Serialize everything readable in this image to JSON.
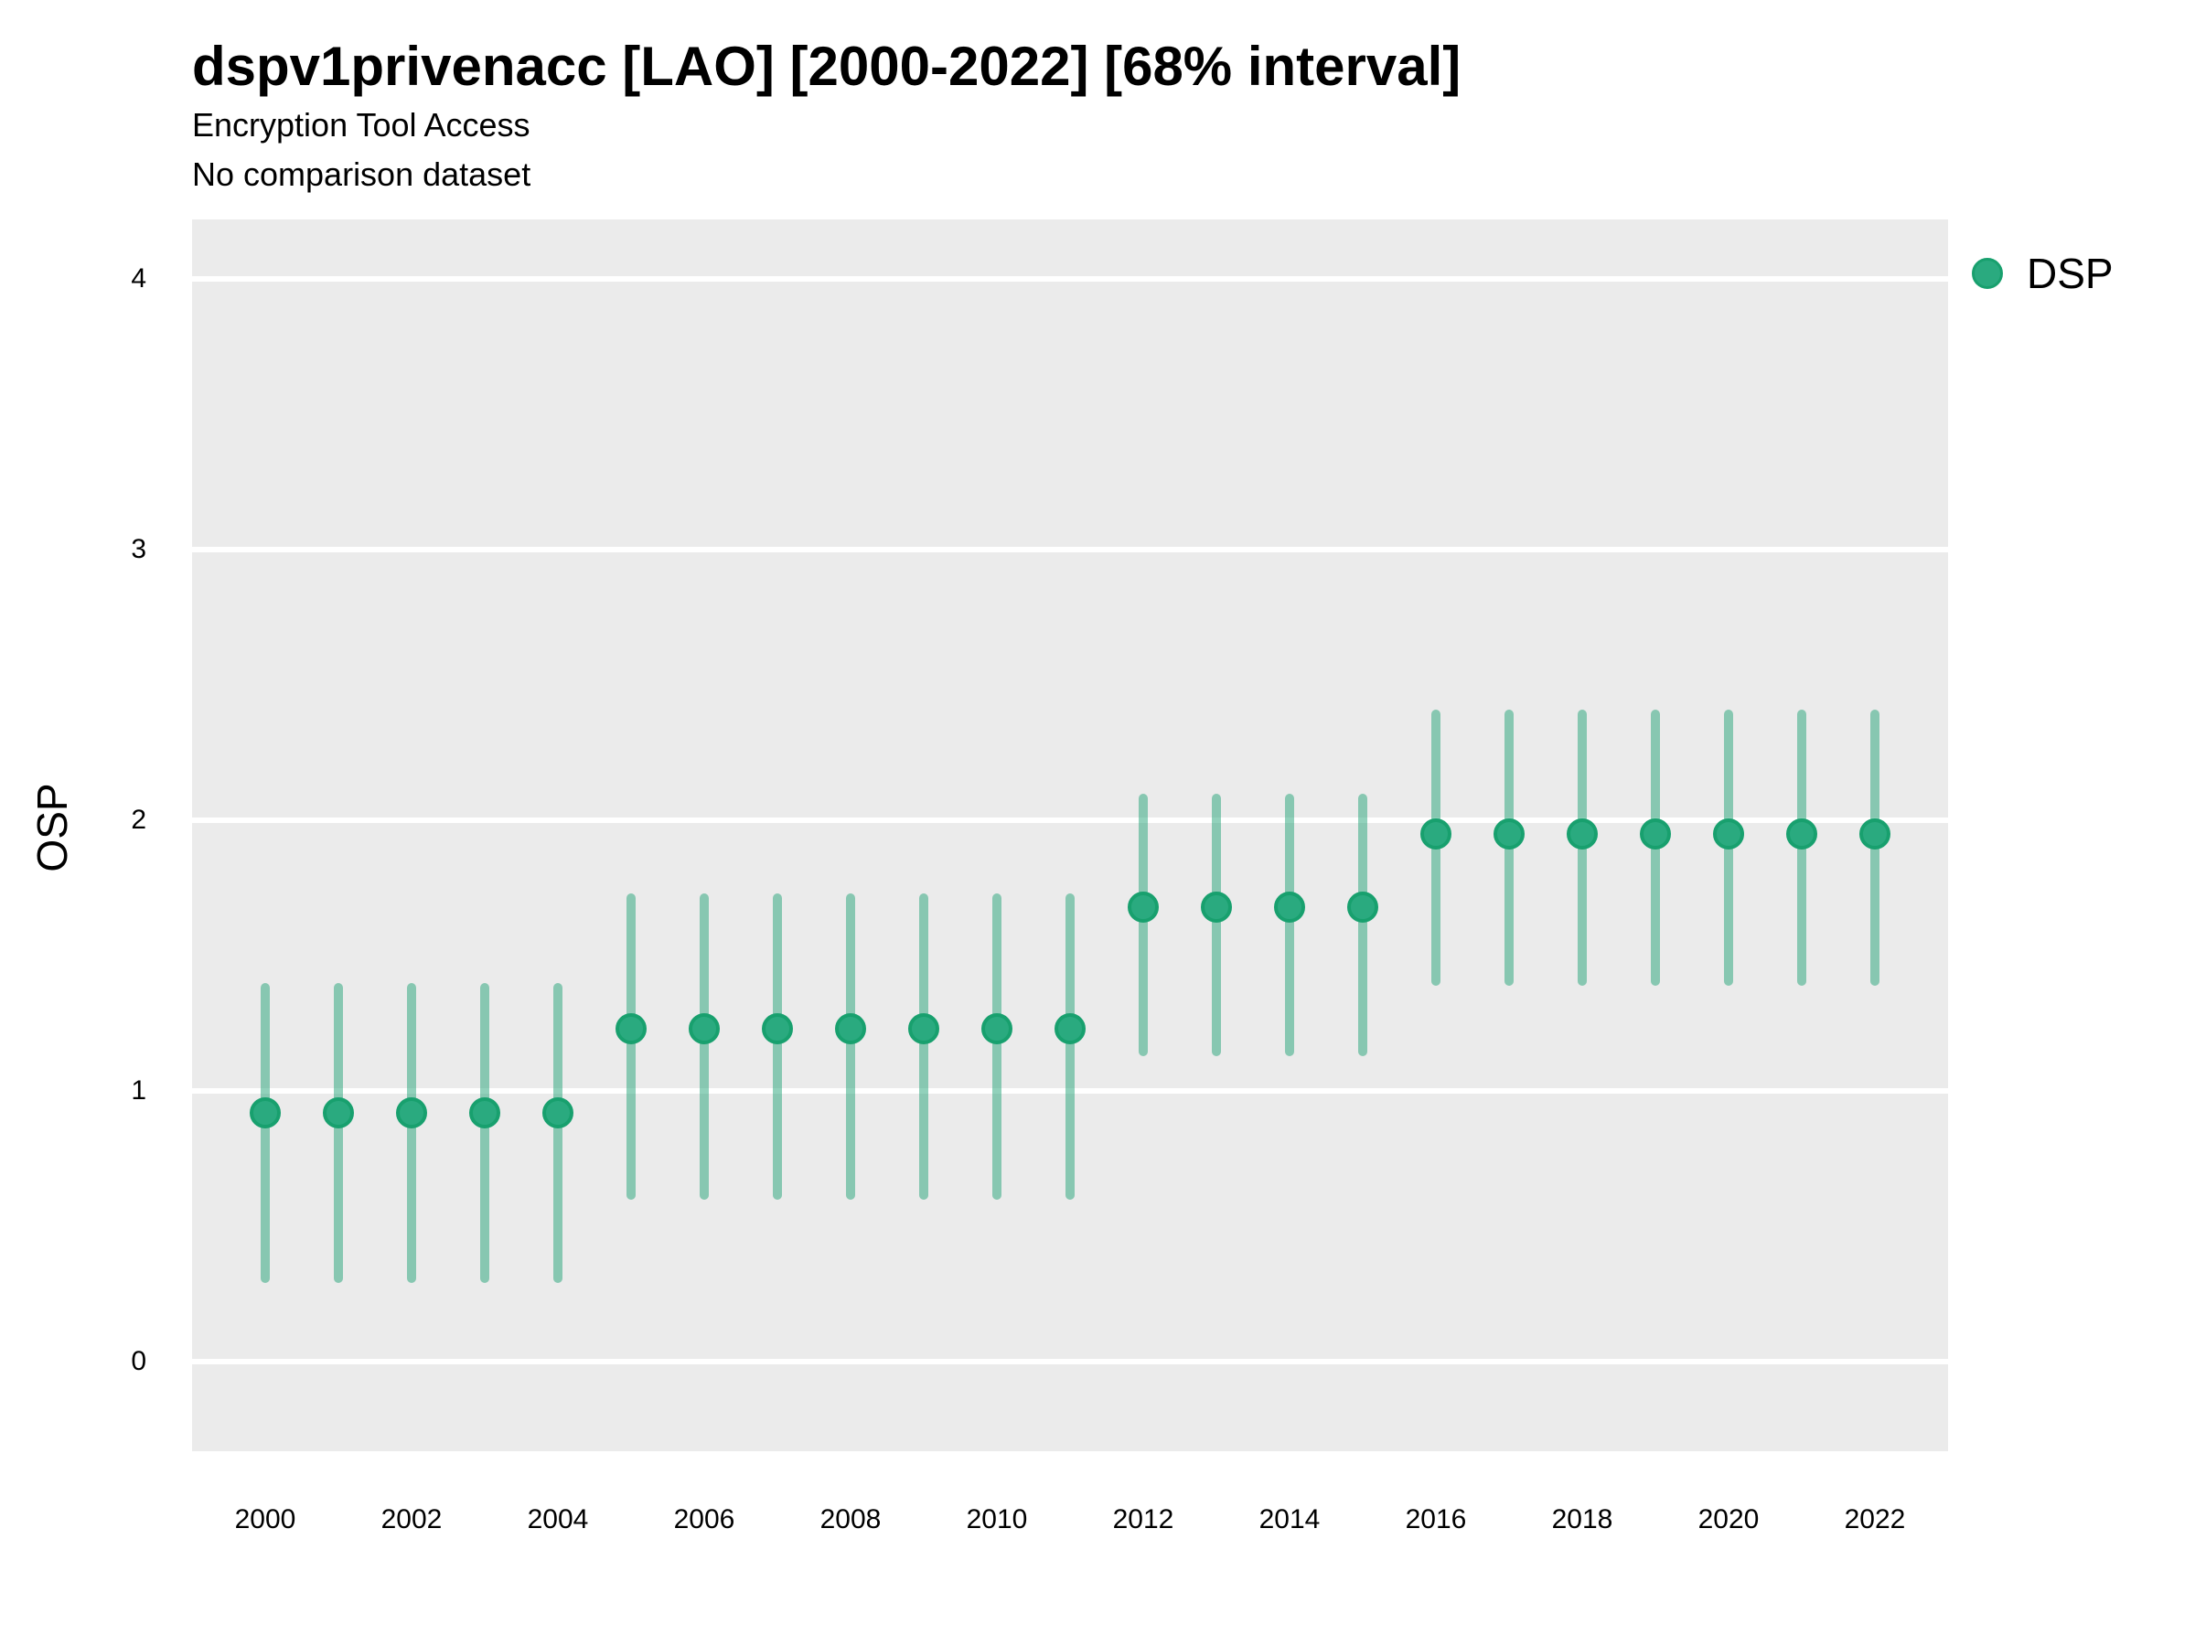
{
  "header": {
    "title": "dspv1privenacc [LAO] [2000-2022] [68% interval]",
    "subtitle": "Encryption Tool Access",
    "note": "No comparison dataset"
  },
  "y_axis": {
    "label": "OSP",
    "ticks": [
      4,
      3,
      2,
      1,
      0
    ]
  },
  "x_axis": {
    "ticks": [
      2000,
      2002,
      2004,
      2006,
      2008,
      2010,
      2012,
      2014,
      2016,
      2018,
      2020,
      2022
    ]
  },
  "legend": {
    "items": [
      {
        "label": "DSP"
      }
    ]
  },
  "colors": {
    "point_fill": "#2aaa7f",
    "point_stroke": "#18a06e",
    "interval": "rgba(35,163,119,0.5)",
    "panel_bg": "#ebebeb",
    "gridline": "#ffffff"
  },
  "chart_data": {
    "type": "scatter",
    "subtype": "pointrange",
    "title": "dspv1privenacc [LAO] [2000-2022] [68% interval]",
    "subtitle": "Encryption Tool Access",
    "note": "No comparison dataset",
    "interval_level": "68%",
    "xlabel": "",
    "ylabel": "OSP",
    "xlim": [
      1999,
      2023
    ],
    "ylim": [
      -0.33,
      4.22
    ],
    "grid": "major-horizontal-only",
    "legend_position": "right",
    "series": [
      {
        "name": "DSP",
        "points": [
          {
            "year": 2000,
            "value": 0.92,
            "lo": 0.29,
            "hi": 1.4
          },
          {
            "year": 2001,
            "value": 0.92,
            "lo": 0.29,
            "hi": 1.4
          },
          {
            "year": 2002,
            "value": 0.92,
            "lo": 0.29,
            "hi": 1.4
          },
          {
            "year": 2003,
            "value": 0.92,
            "lo": 0.29,
            "hi": 1.4
          },
          {
            "year": 2004,
            "value": 0.92,
            "lo": 0.29,
            "hi": 1.4
          },
          {
            "year": 2005,
            "value": 1.23,
            "lo": 0.6,
            "hi": 1.73
          },
          {
            "year": 2006,
            "value": 1.23,
            "lo": 0.6,
            "hi": 1.73
          },
          {
            "year": 2007,
            "value": 1.23,
            "lo": 0.6,
            "hi": 1.73
          },
          {
            "year": 2008,
            "value": 1.23,
            "lo": 0.6,
            "hi": 1.73
          },
          {
            "year": 2009,
            "value": 1.23,
            "lo": 0.6,
            "hi": 1.73
          },
          {
            "year": 2010,
            "value": 1.23,
            "lo": 0.6,
            "hi": 1.73
          },
          {
            "year": 2011,
            "value": 1.23,
            "lo": 0.6,
            "hi": 1.73
          },
          {
            "year": 2012,
            "value": 1.68,
            "lo": 1.13,
            "hi": 2.1
          },
          {
            "year": 2013,
            "value": 1.68,
            "lo": 1.13,
            "hi": 2.1
          },
          {
            "year": 2014,
            "value": 1.68,
            "lo": 1.13,
            "hi": 2.1
          },
          {
            "year": 2015,
            "value": 1.68,
            "lo": 1.13,
            "hi": 2.1
          },
          {
            "year": 2016,
            "value": 1.95,
            "lo": 1.39,
            "hi": 2.41
          },
          {
            "year": 2017,
            "value": 1.95,
            "lo": 1.39,
            "hi": 2.41
          },
          {
            "year": 2018,
            "value": 1.95,
            "lo": 1.39,
            "hi": 2.41
          },
          {
            "year": 2019,
            "value": 1.95,
            "lo": 1.39,
            "hi": 2.41
          },
          {
            "year": 2020,
            "value": 1.95,
            "lo": 1.39,
            "hi": 2.41
          },
          {
            "year": 2021,
            "value": 1.95,
            "lo": 1.39,
            "hi": 2.41
          },
          {
            "year": 2022,
            "value": 1.95,
            "lo": 1.39,
            "hi": 2.41
          }
        ]
      }
    ]
  }
}
